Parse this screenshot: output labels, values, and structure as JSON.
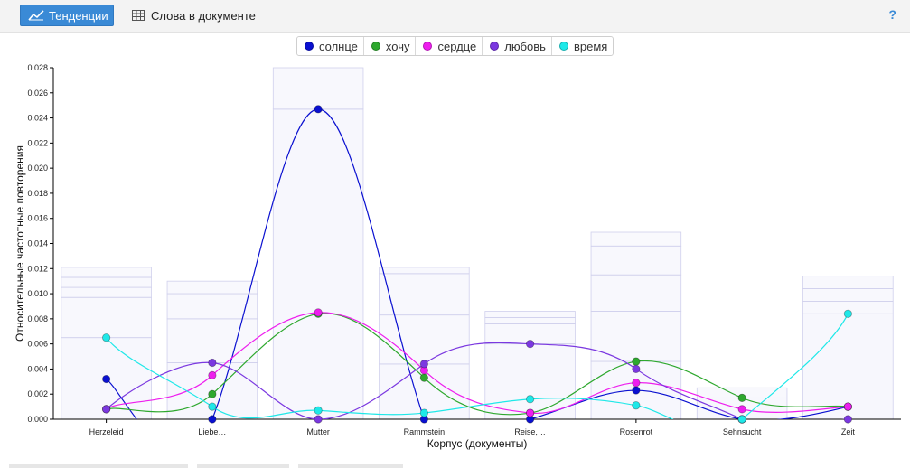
{
  "toolbar": {
    "tab_trends": "Тенденции",
    "tab_words": "Слова в документе",
    "help": "?"
  },
  "colors": {
    "accent": "#3a8ad6",
    "bars_fill": "#eeeefa",
    "bars_stroke": "#d0d0ec"
  },
  "chart_data": {
    "type": "line",
    "ylabel": "Относительные частотные повторения",
    "xlabel": "Корпус (документы)",
    "ylim": [
      0,
      0.028
    ],
    "yticks": [
      "0.000",
      "0.002",
      "0.004",
      "0.006",
      "0.008",
      "0.010",
      "0.012",
      "0.014",
      "0.016",
      "0.018",
      "0.020",
      "0.022",
      "0.024",
      "0.026",
      "0.028"
    ],
    "categories": [
      "Herzeleid",
      "Liebe…",
      "Mutter",
      "Rammstein",
      "Reise,…",
      "Rosenrot",
      "Sehnsucht",
      "Zeit"
    ],
    "series": [
      {
        "name": "солнце",
        "color": "#0a10d0",
        "values": [
          0.0032,
          0.0,
          0.0247,
          0.0,
          0.0,
          0.0023,
          0.0,
          0.001
        ]
      },
      {
        "name": "хочу",
        "color": "#2ea82e",
        "values": [
          0.0008,
          0.002,
          0.0084,
          0.0033,
          0.0005,
          0.0046,
          0.0017,
          0.001
        ]
      },
      {
        "name": "сердце",
        "color": "#ee1eee",
        "values": [
          0.0008,
          0.0035,
          0.0085,
          0.0039,
          0.0005,
          0.0029,
          0.0008,
          0.001
        ]
      },
      {
        "name": "любовь",
        "color": "#7b38e0",
        "values": [
          0.0008,
          0.0045,
          0.0,
          0.0044,
          0.006,
          0.004,
          0.0,
          0.0
        ]
      },
      {
        "name": "время",
        "color": "#1fe8e8",
        "values": [
          0.0065,
          0.001,
          0.0007,
          0.0005,
          0.0016,
          0.0011,
          0.0,
          0.0084
        ]
      }
    ]
  }
}
